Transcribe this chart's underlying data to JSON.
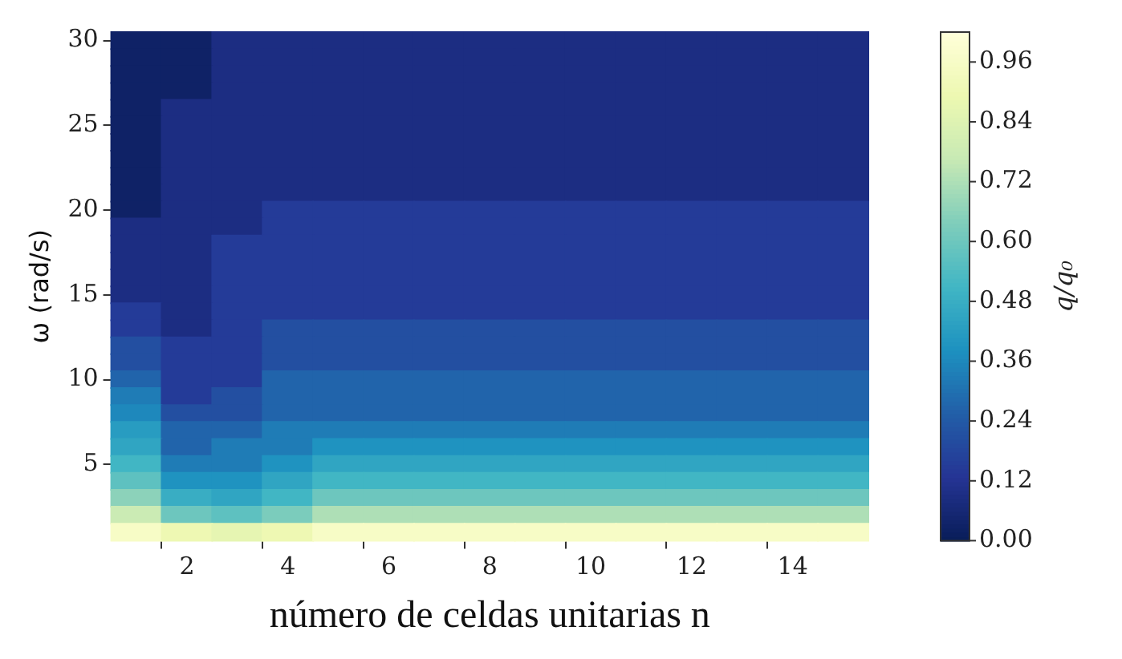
{
  "chart_data": {
    "type": "heatmap",
    "xlabel": "número de celdas unitarias n",
    "ylabel": "ω (rad/s)",
    "clabel": "q/q₀",
    "categories": [
      null,
      "2",
      null,
      "4",
      null,
      "6",
      null,
      "8",
      null,
      "10",
      null,
      "12",
      null,
      "14",
      null
    ],
    "y_categories": [
      "30",
      null,
      null,
      null,
      null,
      "25",
      null,
      null,
      null,
      null,
      "20",
      null,
      null,
      null,
      null,
      "15",
      null,
      null,
      null,
      null,
      "10",
      null,
      null,
      null,
      null,
      "5",
      null,
      null,
      null,
      null
    ],
    "cells": [
      [
        0.03,
        0.03,
        0.09,
        0.09,
        0.09,
        0.09,
        0.09,
        0.09,
        0.09,
        0.09,
        0.09,
        0.09,
        0.09,
        0.09,
        0.09
      ],
      [
        0.03,
        0.03,
        0.09,
        0.09,
        0.09,
        0.09,
        0.09,
        0.09,
        0.09,
        0.09,
        0.09,
        0.09,
        0.09,
        0.09,
        0.09
      ],
      [
        0.03,
        0.03,
        0.09,
        0.09,
        0.09,
        0.09,
        0.09,
        0.09,
        0.09,
        0.09,
        0.09,
        0.09,
        0.09,
        0.09,
        0.09
      ],
      [
        0.03,
        0.03,
        0.09,
        0.09,
        0.09,
        0.09,
        0.09,
        0.09,
        0.09,
        0.09,
        0.09,
        0.09,
        0.09,
        0.09,
        0.09
      ],
      [
        0.03,
        0.09,
        0.09,
        0.09,
        0.09,
        0.09,
        0.09,
        0.09,
        0.09,
        0.09,
        0.09,
        0.09,
        0.09,
        0.09,
        0.09
      ],
      [
        0.03,
        0.09,
        0.09,
        0.09,
        0.09,
        0.09,
        0.09,
        0.09,
        0.09,
        0.09,
        0.09,
        0.09,
        0.09,
        0.09,
        0.09
      ],
      [
        0.03,
        0.09,
        0.09,
        0.09,
        0.09,
        0.09,
        0.09,
        0.09,
        0.09,
        0.09,
        0.09,
        0.09,
        0.09,
        0.09,
        0.09
      ],
      [
        0.03,
        0.09,
        0.09,
        0.09,
        0.09,
        0.09,
        0.09,
        0.09,
        0.09,
        0.09,
        0.09,
        0.09,
        0.09,
        0.09,
        0.09
      ],
      [
        0.03,
        0.09,
        0.09,
        0.09,
        0.09,
        0.09,
        0.09,
        0.09,
        0.09,
        0.09,
        0.09,
        0.09,
        0.09,
        0.09,
        0.09
      ],
      [
        0.03,
        0.09,
        0.09,
        0.09,
        0.09,
        0.09,
        0.09,
        0.09,
        0.09,
        0.09,
        0.09,
        0.09,
        0.09,
        0.09,
        0.09
      ],
      [
        0.03,
        0.09,
        0.09,
        0.15,
        0.15,
        0.15,
        0.15,
        0.15,
        0.15,
        0.15,
        0.15,
        0.15,
        0.15,
        0.15,
        0.15
      ],
      [
        0.09,
        0.09,
        0.09,
        0.15,
        0.15,
        0.15,
        0.15,
        0.15,
        0.15,
        0.15,
        0.15,
        0.15,
        0.15,
        0.15,
        0.15
      ],
      [
        0.09,
        0.09,
        0.15,
        0.15,
        0.15,
        0.15,
        0.15,
        0.15,
        0.15,
        0.15,
        0.15,
        0.15,
        0.15,
        0.15,
        0.15
      ],
      [
        0.09,
        0.09,
        0.15,
        0.15,
        0.15,
        0.15,
        0.15,
        0.15,
        0.15,
        0.15,
        0.15,
        0.15,
        0.15,
        0.15,
        0.15
      ],
      [
        0.09,
        0.09,
        0.15,
        0.15,
        0.15,
        0.15,
        0.15,
        0.15,
        0.15,
        0.15,
        0.15,
        0.15,
        0.15,
        0.15,
        0.15
      ],
      [
        0.09,
        0.09,
        0.15,
        0.15,
        0.15,
        0.15,
        0.15,
        0.15,
        0.15,
        0.15,
        0.15,
        0.15,
        0.15,
        0.15,
        0.15
      ],
      [
        0.15,
        0.09,
        0.15,
        0.15,
        0.15,
        0.15,
        0.15,
        0.15,
        0.15,
        0.15,
        0.15,
        0.15,
        0.15,
        0.15,
        0.15
      ],
      [
        0.15,
        0.09,
        0.15,
        0.21,
        0.21,
        0.21,
        0.21,
        0.21,
        0.21,
        0.21,
        0.21,
        0.21,
        0.21,
        0.21,
        0.21
      ],
      [
        0.21,
        0.15,
        0.15,
        0.21,
        0.21,
        0.21,
        0.21,
        0.21,
        0.21,
        0.21,
        0.21,
        0.21,
        0.21,
        0.21,
        0.21
      ],
      [
        0.21,
        0.15,
        0.15,
        0.21,
        0.21,
        0.21,
        0.21,
        0.21,
        0.21,
        0.21,
        0.21,
        0.21,
        0.21,
        0.21,
        0.21
      ],
      [
        0.27,
        0.15,
        0.15,
        0.27,
        0.27,
        0.27,
        0.27,
        0.27,
        0.27,
        0.27,
        0.27,
        0.27,
        0.27,
        0.27,
        0.27
      ],
      [
        0.33,
        0.15,
        0.21,
        0.27,
        0.27,
        0.27,
        0.27,
        0.27,
        0.27,
        0.27,
        0.27,
        0.27,
        0.27,
        0.27,
        0.27
      ],
      [
        0.36,
        0.21,
        0.21,
        0.27,
        0.27,
        0.27,
        0.27,
        0.27,
        0.27,
        0.27,
        0.27,
        0.27,
        0.27,
        0.27,
        0.27
      ],
      [
        0.42,
        0.27,
        0.27,
        0.33,
        0.33,
        0.33,
        0.33,
        0.33,
        0.33,
        0.33,
        0.33,
        0.33,
        0.33,
        0.33,
        0.33
      ],
      [
        0.45,
        0.27,
        0.33,
        0.33,
        0.39,
        0.39,
        0.39,
        0.39,
        0.39,
        0.39,
        0.39,
        0.39,
        0.39,
        0.39,
        0.39
      ],
      [
        0.51,
        0.33,
        0.33,
        0.39,
        0.45,
        0.45,
        0.45,
        0.45,
        0.45,
        0.45,
        0.45,
        0.45,
        0.45,
        0.45,
        0.45
      ],
      [
        0.57,
        0.39,
        0.39,
        0.45,
        0.51,
        0.51,
        0.51,
        0.51,
        0.51,
        0.51,
        0.51,
        0.51,
        0.51,
        0.51,
        0.51
      ],
      [
        0.66,
        0.48,
        0.45,
        0.51,
        0.6,
        0.6,
        0.6,
        0.6,
        0.6,
        0.6,
        0.6,
        0.6,
        0.6,
        0.6,
        0.6
      ],
      [
        0.78,
        0.6,
        0.57,
        0.63,
        0.72,
        0.72,
        0.72,
        0.72,
        0.72,
        0.72,
        0.72,
        0.72,
        0.72,
        0.72,
        0.72
      ],
      [
        0.96,
        0.9,
        0.87,
        0.9,
        0.96,
        0.96,
        0.96,
        0.96,
        0.96,
        0.96,
        0.96,
        0.96,
        0.96,
        0.96,
        0.96
      ]
    ],
    "clim": [
      0,
      1.02
    ],
    "cticks": [
      {
        "value": 0,
        "label": "0.00"
      },
      0.12,
      0.24,
      0.36,
      0.48,
      {
        "value": 0.6,
        "label": "0.60"
      },
      0.72,
      0.84,
      0.96
    ]
  }
}
